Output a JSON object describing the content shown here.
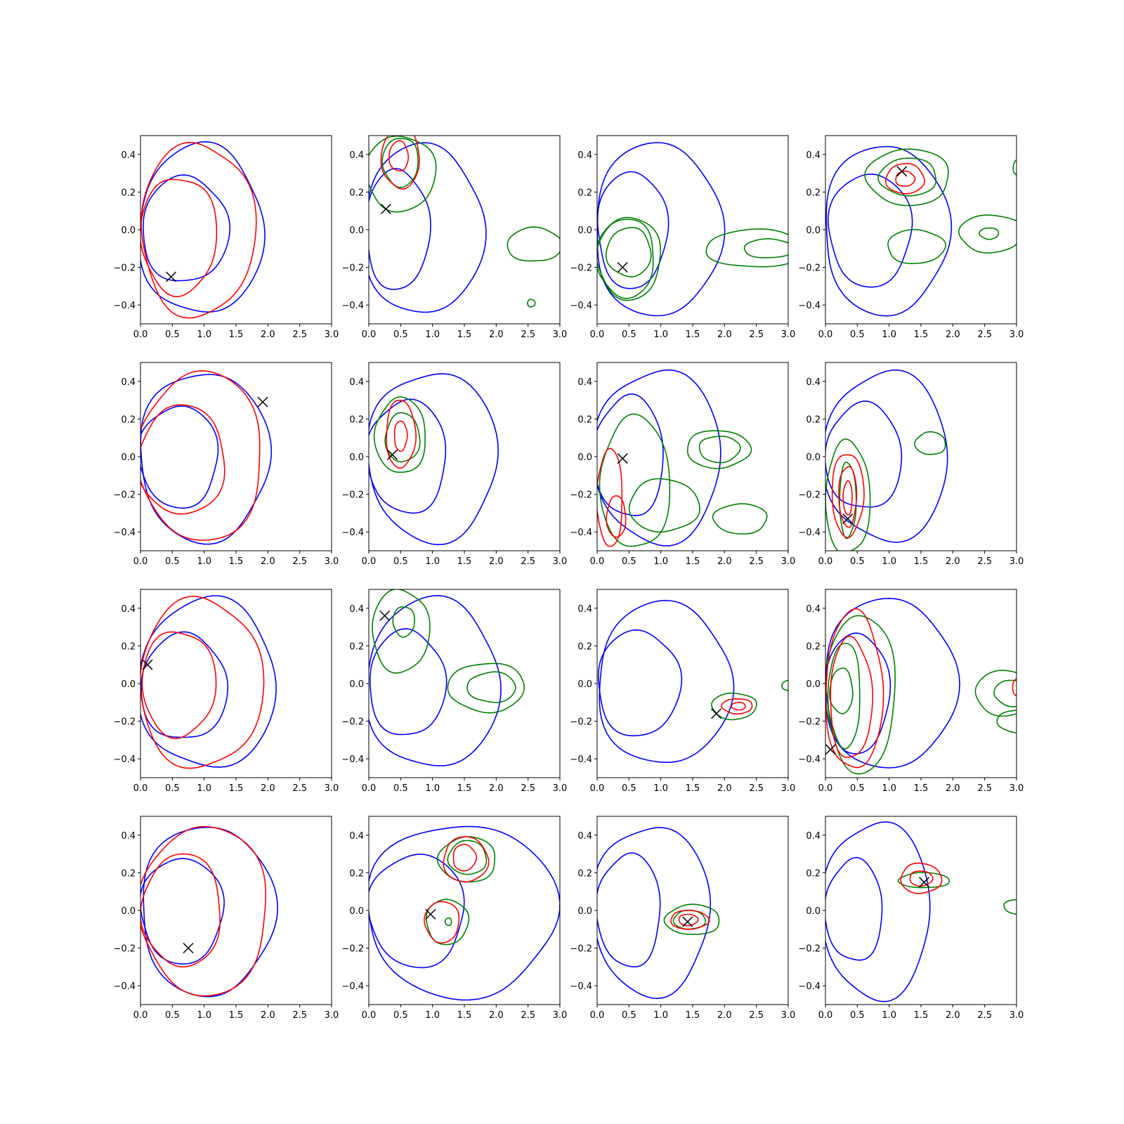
{
  "figure": {
    "rows": 4,
    "cols": 4,
    "x_ticks": [
      "0.0",
      "0.5",
      "1.0",
      "1.5",
      "2.0",
      "2.5",
      "3.0"
    ],
    "y_ticks": [
      "−0.4",
      "−0.2",
      "0.0",
      "0.2",
      "0.4"
    ]
  },
  "colors": {
    "blue": "#0000ff",
    "red": "#ff0000",
    "green": "#008000",
    "marker": "#000000"
  },
  "chart_data": {
    "type": "contour",
    "xlim": [
      0,
      3
    ],
    "ylim": [
      -0.5,
      0.5
    ],
    "grid": false,
    "legend": "none",
    "marker_style": "x",
    "panels": [
      {
        "marker": [
          0.48,
          -0.25
        ],
        "contours": [
          {
            "color": "blue",
            "cx": 0.95,
            "cy": 0.0,
            "rx": 0.98,
            "ry": 0.45
          },
          {
            "color": "blue",
            "cx": 0.7,
            "cy": 0.0,
            "rx": 0.68,
            "ry": 0.28
          },
          {
            "color": "red",
            "cx": 0.9,
            "cy": 0.0,
            "rx": 0.9,
            "ry": 0.46
          },
          {
            "color": "red",
            "cx": 0.6,
            "cy": -0.03,
            "rx": 0.6,
            "ry": 0.31
          }
        ]
      },
      {
        "marker": [
          0.27,
          0.11
        ],
        "contours": [
          {
            "color": "blue",
            "cx": 0.85,
            "cy": 0.0,
            "rx": 0.95,
            "ry": 0.45
          },
          {
            "color": "blue",
            "cx": 0.45,
            "cy": 0.0,
            "rx": 0.5,
            "ry": 0.32
          },
          {
            "color": "green",
            "cx": 0.5,
            "cy": 0.3,
            "rx": 0.55,
            "ry": 0.2
          },
          {
            "color": "green",
            "cx": 0.5,
            "cy": 0.36,
            "rx": 0.28,
            "ry": 0.13
          },
          {
            "color": "red",
            "cx": 0.5,
            "cy": 0.38,
            "rx": 0.3,
            "ry": 0.16
          },
          {
            "color": "red",
            "cx": 0.47,
            "cy": 0.39,
            "rx": 0.15,
            "ry": 0.08
          },
          {
            "color": "green",
            "cx": 2.6,
            "cy": -0.08,
            "rx": 0.43,
            "ry": 0.09
          },
          {
            "color": "green",
            "cx": 2.55,
            "cy": -0.39,
            "rx": 0.06,
            "ry": 0.02
          }
        ]
      },
      {
        "marker": [
          0.4,
          -0.2
        ],
        "contours": [
          {
            "color": "blue",
            "cx": 0.95,
            "cy": 0.0,
            "rx": 1.0,
            "ry": 0.46
          },
          {
            "color": "blue",
            "cx": 0.55,
            "cy": 0.0,
            "rx": 0.55,
            "ry": 0.31
          },
          {
            "color": "green",
            "cx": 0.5,
            "cy": -0.15,
            "rx": 0.5,
            "ry": 0.22
          },
          {
            "color": "green",
            "cx": 0.45,
            "cy": -0.15,
            "rx": 0.45,
            "ry": 0.21
          },
          {
            "color": "green",
            "cx": 0.5,
            "cy": -0.12,
            "rx": 0.35,
            "ry": 0.13
          },
          {
            "color": "green",
            "cx": 2.5,
            "cy": -0.1,
            "rx": 0.8,
            "ry": 0.1
          },
          {
            "color": "green",
            "cx": 2.7,
            "cy": -0.1,
            "rx": 0.4,
            "ry": 0.05
          }
        ]
      },
      {
        "marker": [
          1.2,
          0.31
        ],
        "contours": [
          {
            "color": "blue",
            "cx": 0.95,
            "cy": 0.0,
            "rx": 0.98,
            "ry": 0.45
          },
          {
            "color": "blue",
            "cx": 0.7,
            "cy": 0.0,
            "rx": 0.65,
            "ry": 0.3
          },
          {
            "color": "green",
            "cx": 1.3,
            "cy": 0.28,
            "rx": 0.65,
            "ry": 0.15
          },
          {
            "color": "green",
            "cx": 1.3,
            "cy": 0.28,
            "rx": 0.45,
            "ry": 0.1
          },
          {
            "color": "red",
            "cx": 1.25,
            "cy": 0.27,
            "rx": 0.3,
            "ry": 0.08
          },
          {
            "color": "red",
            "cx": 1.25,
            "cy": 0.27,
            "rx": 0.15,
            "ry": 0.04
          },
          {
            "color": "green",
            "cx": 1.42,
            "cy": -0.09,
            "rx": 0.45,
            "ry": 0.09
          },
          {
            "color": "green",
            "cx": 2.6,
            "cy": -0.02,
            "rx": 0.5,
            "ry": 0.1
          },
          {
            "color": "green",
            "cx": 2.57,
            "cy": -0.02,
            "rx": 0.15,
            "ry": 0.03
          },
          {
            "color": "green",
            "cx": 3.05,
            "cy": 0.33,
            "rx": 0.1,
            "ry": 0.05
          }
        ]
      },
      {
        "marker": [
          1.92,
          0.29
        ],
        "contours": [
          {
            "color": "blue",
            "cx": 1.0,
            "cy": 0.0,
            "rx": 1.02,
            "ry": 0.45
          },
          {
            "color": "blue",
            "cx": 0.6,
            "cy": 0.0,
            "rx": 0.62,
            "ry": 0.27
          },
          {
            "color": "red",
            "cx": 0.95,
            "cy": 0.0,
            "rx": 0.97,
            "ry": 0.45
          },
          {
            "color": "red",
            "cx": 0.65,
            "cy": -0.02,
            "rx": 0.68,
            "ry": 0.29
          }
        ]
      },
      {
        "marker": [
          0.37,
          0.01
        ],
        "contours": [
          {
            "color": "blue",
            "cx": 1.0,
            "cy": 0.0,
            "rx": 1.02,
            "ry": 0.45
          },
          {
            "color": "blue",
            "cx": 0.6,
            "cy": 0.0,
            "rx": 0.62,
            "ry": 0.3
          },
          {
            "color": "green",
            "cx": 0.5,
            "cy": 0.11,
            "rx": 0.4,
            "ry": 0.2
          },
          {
            "color": "green",
            "cx": 0.53,
            "cy": 0.1,
            "rx": 0.27,
            "ry": 0.13
          },
          {
            "color": "red",
            "cx": 0.5,
            "cy": 0.12,
            "rx": 0.23,
            "ry": 0.18
          },
          {
            "color": "red",
            "cx": 0.5,
            "cy": 0.11,
            "rx": 0.1,
            "ry": 0.08
          }
        ]
      },
      {
        "marker": [
          0.4,
          -0.01
        ],
        "contours": [
          {
            "color": "blue",
            "cx": 0.95,
            "cy": 0.0,
            "rx": 1.0,
            "ry": 0.46
          },
          {
            "color": "blue",
            "cx": 0.5,
            "cy": 0.0,
            "rx": 0.55,
            "ry": 0.32
          },
          {
            "color": "green",
            "cx": 0.6,
            "cy": -0.14,
            "rx": 0.55,
            "ry": 0.35
          },
          {
            "color": "green",
            "cx": 1.05,
            "cy": -0.26,
            "rx": 0.55,
            "ry": 0.14
          },
          {
            "color": "green",
            "cx": 1.9,
            "cy": 0.04,
            "rx": 0.5,
            "ry": 0.1
          },
          {
            "color": "green",
            "cx": 1.92,
            "cy": 0.04,
            "rx": 0.32,
            "ry": 0.07
          },
          {
            "color": "green",
            "cx": 2.25,
            "cy": -0.33,
            "rx": 0.42,
            "ry": 0.08
          },
          {
            "color": "red",
            "cx": 0.2,
            "cy": -0.22,
            "rx": 0.2,
            "ry": 0.26
          },
          {
            "color": "red",
            "cx": 0.3,
            "cy": -0.32,
            "rx": 0.15,
            "ry": 0.11
          }
        ]
      },
      {
        "marker": [
          0.35,
          -0.33
        ],
        "contours": [
          {
            "color": "blue",
            "cx": 0.95,
            "cy": 0.0,
            "rx": 0.98,
            "ry": 0.45
          },
          {
            "color": "blue",
            "cx": 0.6,
            "cy": 0.0,
            "rx": 0.6,
            "ry": 0.28
          },
          {
            "color": "green",
            "cx": 0.35,
            "cy": -0.22,
            "rx": 0.35,
            "ry": 0.3
          },
          {
            "color": "green",
            "cx": 0.35,
            "cy": -0.23,
            "rx": 0.13,
            "ry": 0.2
          },
          {
            "color": "red",
            "cx": 0.35,
            "cy": -0.2,
            "rx": 0.25,
            "ry": 0.22
          },
          {
            "color": "red",
            "cx": 0.35,
            "cy": -0.21,
            "rx": 0.14,
            "ry": 0.16
          },
          {
            "color": "red",
            "cx": 0.35,
            "cy": -0.22,
            "rx": 0.07,
            "ry": 0.09
          },
          {
            "color": "green",
            "cx": 1.65,
            "cy": 0.07,
            "rx": 0.24,
            "ry": 0.06
          }
        ]
      },
      {
        "marker": [
          0.11,
          0.1
        ],
        "contours": [
          {
            "color": "blue",
            "cx": 1.05,
            "cy": 0.0,
            "rx": 1.08,
            "ry": 0.45
          },
          {
            "color": "blue",
            "cx": 0.68,
            "cy": -0.02,
            "rx": 0.68,
            "ry": 0.28
          },
          {
            "color": "red",
            "cx": 0.95,
            "cy": 0.0,
            "rx": 0.97,
            "ry": 0.45
          },
          {
            "color": "red",
            "cx": 0.6,
            "cy": 0.0,
            "rx": 0.58,
            "ry": 0.28
          }
        ]
      },
      {
        "marker": [
          0.25,
          0.36
        ],
        "contours": [
          {
            "color": "blue",
            "cx": 1.0,
            "cy": 0.0,
            "rx": 1.05,
            "ry": 0.45
          },
          {
            "color": "blue",
            "cx": 0.6,
            "cy": 0.0,
            "rx": 0.6,
            "ry": 0.28
          },
          {
            "color": "green",
            "cx": 0.5,
            "cy": 0.28,
            "rx": 0.45,
            "ry": 0.22
          },
          {
            "color": "green",
            "cx": 0.55,
            "cy": 0.33,
            "rx": 0.17,
            "ry": 0.08
          },
          {
            "color": "green",
            "cx": 1.85,
            "cy": -0.02,
            "rx": 0.6,
            "ry": 0.13
          },
          {
            "color": "green",
            "cx": 1.93,
            "cy": -0.02,
            "rx": 0.38,
            "ry": 0.08
          }
        ]
      },
      {
        "marker": [
          1.87,
          -0.16
        ],
        "contours": [
          {
            "color": "blue",
            "cx": 1.05,
            "cy": 0.0,
            "rx": 1.05,
            "ry": 0.43
          },
          {
            "color": "blue",
            "cx": 0.65,
            "cy": 0.0,
            "rx": 0.65,
            "ry": 0.28
          },
          {
            "color": "green",
            "cx": 2.15,
            "cy": -0.12,
            "rx": 0.35,
            "ry": 0.07
          },
          {
            "color": "red",
            "cx": 2.2,
            "cy": -0.12,
            "rx": 0.24,
            "ry": 0.04
          },
          {
            "color": "red",
            "cx": 2.22,
            "cy": -0.12,
            "rx": 0.11,
            "ry": 0.02
          },
          {
            "color": "green",
            "cx": 3.05,
            "cy": -0.01,
            "rx": 0.15,
            "ry": 0.03
          }
        ]
      },
      {
        "marker": [
          0.08,
          -0.35
        ],
        "contours": [
          {
            "color": "blue",
            "cx": 1.0,
            "cy": 0.0,
            "rx": 1.05,
            "ry": 0.45
          },
          {
            "color": "blue",
            "cx": 0.5,
            "cy": -0.05,
            "rx": 0.5,
            "ry": 0.32
          },
          {
            "color": "green",
            "cx": 0.55,
            "cy": -0.05,
            "rx": 0.55,
            "ry": 0.42
          },
          {
            "color": "green",
            "cx": 0.3,
            "cy": -0.06,
            "rx": 0.25,
            "ry": 0.28
          },
          {
            "color": "green",
            "cx": 0.25,
            "cy": -0.04,
            "rx": 0.18,
            "ry": 0.12
          },
          {
            "color": "red",
            "cx": 0.45,
            "cy": -0.04,
            "rx": 0.45,
            "ry": 0.42
          },
          {
            "color": "red",
            "cx": 0.4,
            "cy": -0.08,
            "rx": 0.33,
            "ry": 0.32
          },
          {
            "color": "green",
            "cx": 2.85,
            "cy": -0.05,
            "rx": 0.5,
            "ry": 0.12
          },
          {
            "color": "green",
            "cx": 2.95,
            "cy": -0.05,
            "rx": 0.3,
            "ry": 0.07
          },
          {
            "color": "green",
            "cx": 3.0,
            "cy": -0.2,
            "rx": 0.3,
            "ry": 0.06
          },
          {
            "color": "red",
            "cx": 3.02,
            "cy": -0.02,
            "rx": 0.08,
            "ry": 0.05
          }
        ]
      },
      {
        "marker": [
          0.75,
          -0.2
        ],
        "contours": [
          {
            "color": "blue",
            "cx": 1.05,
            "cy": 0.0,
            "rx": 1.05,
            "ry": 0.45
          },
          {
            "color": "blue",
            "cx": 0.65,
            "cy": 0.0,
            "rx": 0.65,
            "ry": 0.28
          },
          {
            "color": "red",
            "cx": 1.0,
            "cy": 0.0,
            "rx": 1.0,
            "ry": 0.45
          },
          {
            "color": "red",
            "cx": 0.65,
            "cy": 0.0,
            "rx": 0.62,
            "ry": 0.3
          }
        ]
      },
      {
        "marker": [
          0.97,
          -0.02
        ],
        "contours": [
          {
            "color": "blue",
            "cx": 1.45,
            "cy": 0.0,
            "rx": 1.5,
            "ry": 0.46
          },
          {
            "color": "blue",
            "cx": 0.75,
            "cy": 0.0,
            "rx": 0.75,
            "ry": 0.3
          },
          {
            "color": "green",
            "cx": 1.55,
            "cy": 0.27,
            "rx": 0.45,
            "ry": 0.12
          },
          {
            "color": "green",
            "cx": 1.55,
            "cy": 0.28,
            "rx": 0.3,
            "ry": 0.09
          },
          {
            "color": "red",
            "cx": 1.52,
            "cy": 0.27,
            "rx": 0.35,
            "ry": 0.12
          },
          {
            "color": "red",
            "cx": 1.5,
            "cy": 0.28,
            "rx": 0.18,
            "ry": 0.07
          },
          {
            "color": "green",
            "cx": 1.23,
            "cy": -0.06,
            "rx": 0.33,
            "ry": 0.12
          },
          {
            "color": "red",
            "cx": 1.15,
            "cy": -0.06,
            "rx": 0.27,
            "ry": 0.11
          },
          {
            "color": "green",
            "cx": 1.25,
            "cy": -0.06,
            "rx": 0.05,
            "ry": 0.02
          }
        ]
      },
      {
        "marker": [
          1.42,
          -0.06
        ],
        "contours": [
          {
            "color": "blue",
            "cx": 0.85,
            "cy": 0.0,
            "rx": 0.92,
            "ry": 0.45
          },
          {
            "color": "blue",
            "cx": 0.5,
            "cy": 0.0,
            "rx": 0.5,
            "ry": 0.3
          },
          {
            "color": "green",
            "cx": 1.5,
            "cy": -0.05,
            "rx": 0.43,
            "ry": 0.08
          },
          {
            "color": "green",
            "cx": 1.45,
            "cy": -0.05,
            "rx": 0.25,
            "ry": 0.05
          },
          {
            "color": "red",
            "cx": 1.45,
            "cy": -0.05,
            "rx": 0.3,
            "ry": 0.05
          },
          {
            "color": "red",
            "cx": 1.43,
            "cy": -0.05,
            "rx": 0.15,
            "ry": 0.03
          }
        ]
      },
      {
        "marker": [
          1.55,
          0.15
        ],
        "contours": [
          {
            "color": "blue",
            "cx": 0.8,
            "cy": 0.0,
            "rx": 0.85,
            "ry": 0.47
          },
          {
            "color": "blue",
            "cx": 0.45,
            "cy": 0.0,
            "rx": 0.45,
            "ry": 0.27
          },
          {
            "color": "green",
            "cx": 1.55,
            "cy": 0.16,
            "rx": 0.4,
            "ry": 0.04
          },
          {
            "color": "red",
            "cx": 1.5,
            "cy": 0.17,
            "rx": 0.32,
            "ry": 0.08
          },
          {
            "color": "red",
            "cx": 1.5,
            "cy": 0.17,
            "rx": 0.18,
            "ry": 0.04
          },
          {
            "color": "green",
            "cx": 3.05,
            "cy": 0.02,
            "rx": 0.25,
            "ry": 0.04
          }
        ]
      }
    ]
  }
}
